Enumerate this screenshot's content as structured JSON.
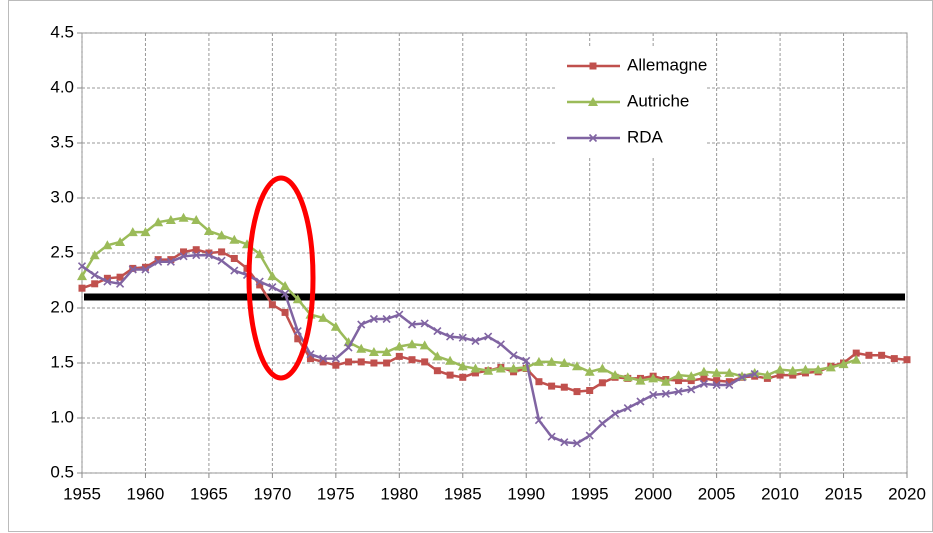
{
  "chart_data": {
    "type": "line",
    "x": [
      1955,
      1956,
      1957,
      1958,
      1959,
      1960,
      1961,
      1962,
      1963,
      1964,
      1965,
      1966,
      1967,
      1968,
      1969,
      1970,
      1971,
      1972,
      1973,
      1974,
      1975,
      1976,
      1977,
      1978,
      1979,
      1980,
      1981,
      1982,
      1983,
      1984,
      1985,
      1986,
      1987,
      1988,
      1989,
      1990,
      1991,
      1992,
      1993,
      1994,
      1995,
      1996,
      1997,
      1998,
      1999,
      2000,
      2001,
      2002,
      2003,
      2004,
      2005,
      2006,
      2007,
      2008,
      2009,
      2010,
      2011,
      2012,
      2013,
      2014,
      2015,
      2016,
      2017,
      2018,
      2019,
      2020
    ],
    "series": [
      {
        "name": "Allemagne",
        "color": "#c0504d",
        "marker": "square",
        "values": [
          2.18,
          2.22,
          2.27,
          2.28,
          2.36,
          2.37,
          2.44,
          2.44,
          2.51,
          2.53,
          2.5,
          2.51,
          2.45,
          2.36,
          2.21,
          2.03,
          1.96,
          1.72,
          1.54,
          1.51,
          1.48,
          1.51,
          1.51,
          1.5,
          1.5,
          1.56,
          1.53,
          1.51,
          1.43,
          1.39,
          1.37,
          1.41,
          1.43,
          1.46,
          1.42,
          1.45,
          1.33,
          1.29,
          1.28,
          1.24,
          1.25,
          1.32,
          1.37,
          1.36,
          1.36,
          1.38,
          1.35,
          1.34,
          1.34,
          1.36,
          1.34,
          1.33,
          1.37,
          1.38,
          1.36,
          1.39,
          1.39,
          1.41,
          1.42,
          1.47,
          1.5,
          1.59,
          1.57,
          1.57,
          1.54,
          1.53
        ]
      },
      {
        "name": "Autriche",
        "color": "#9bbb59",
        "marker": "triangle",
        "values": [
          2.29,
          2.48,
          2.57,
          2.6,
          2.69,
          2.69,
          2.78,
          2.8,
          2.82,
          2.8,
          2.7,
          2.66,
          2.62,
          2.58,
          2.49,
          2.29,
          2.2,
          2.08,
          1.94,
          1.91,
          1.83,
          1.69,
          1.63,
          1.6,
          1.6,
          1.65,
          1.67,
          1.66,
          1.56,
          1.52,
          1.47,
          1.45,
          1.43,
          1.45,
          1.45,
          1.46,
          1.51,
          1.51,
          1.5,
          1.47,
          1.42,
          1.45,
          1.39,
          1.37,
          1.34,
          1.36,
          1.33,
          1.39,
          1.38,
          1.42,
          1.41,
          1.41,
          1.38,
          1.41,
          1.39,
          1.44,
          1.43,
          1.44,
          1.44,
          1.46,
          1.49,
          1.53,
          null,
          null,
          null,
          null
        ]
      },
      {
        "name": "RDA",
        "color": "#8064a2",
        "marker": "cross",
        "values": [
          2.38,
          2.3,
          2.24,
          2.22,
          2.35,
          2.35,
          2.42,
          2.42,
          2.47,
          2.48,
          2.48,
          2.43,
          2.34,
          2.3,
          2.24,
          2.19,
          2.13,
          1.79,
          1.58,
          1.54,
          1.54,
          1.64,
          1.85,
          1.9,
          1.9,
          1.94,
          1.85,
          1.86,
          1.79,
          1.74,
          1.73,
          1.7,
          1.74,
          1.67,
          1.57,
          1.52,
          0.98,
          0.83,
          0.78,
          0.77,
          0.84,
          0.95,
          1.04,
          1.09,
          1.15,
          1.21,
          1.22,
          1.24,
          1.26,
          1.31,
          1.3,
          1.3,
          1.37,
          1.4,
          null,
          null,
          null,
          null,
          null,
          null,
          null,
          null,
          null,
          null,
          null,
          null
        ]
      }
    ],
    "xlim": [
      1955,
      2020
    ],
    "xticks": [
      1955,
      1960,
      1965,
      1970,
      1975,
      1980,
      1985,
      1990,
      1995,
      2000,
      2005,
      2010,
      2015,
      2020
    ],
    "ylim": [
      0.5,
      4.5
    ],
    "yticks": [
      0.5,
      {
        "value": 1,
        "label": "1.0"
      },
      1.5,
      {
        "value": 2,
        "label": "2.0"
      },
      2.5,
      {
        "value": 3,
        "label": "3.0"
      },
      3.5,
      {
        "value": 4,
        "label": "4.0"
      },
      4.5
    ],
    "grid": true,
    "legend": "upper right",
    "reference_line": {
      "value": 2.1,
      "color": "#000000"
    }
  }
}
